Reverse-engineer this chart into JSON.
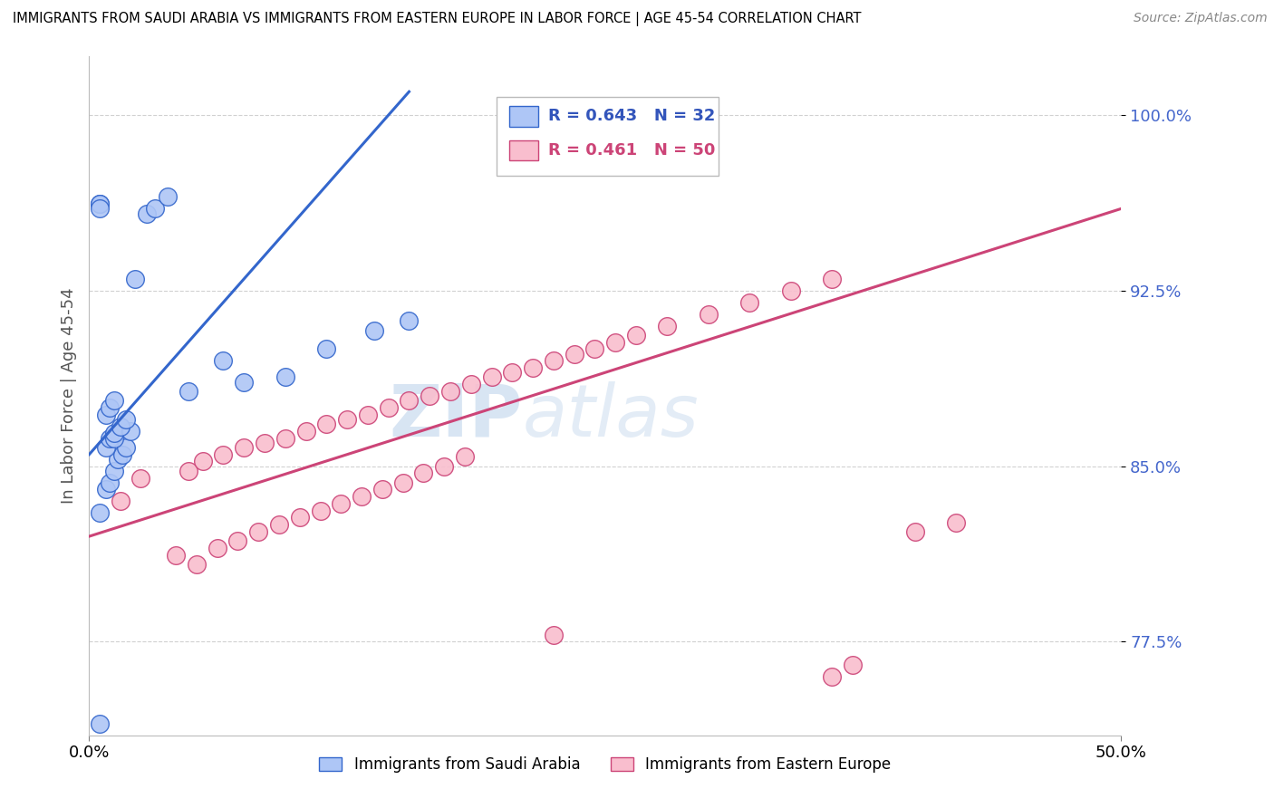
{
  "title": "IMMIGRANTS FROM SAUDI ARABIA VS IMMIGRANTS FROM EASTERN EUROPE IN LABOR FORCE | AGE 45-54 CORRELATION CHART",
  "source": "Source: ZipAtlas.com",
  "ylabel": "In Labor Force | Age 45-54",
  "legend_blue_R": "R = 0.643",
  "legend_blue_N": "N = 32",
  "legend_pink_R": "R = 0.461",
  "legend_pink_N": "N = 50",
  "legend_label_blue": "Immigrants from Saudi Arabia",
  "legend_label_pink": "Immigrants from Eastern Europe",
  "blue_color": "#AEC6F6",
  "pink_color": "#F9BECE",
  "blue_color_line": "#3366CC",
  "pink_color_line": "#CC4477",
  "blue_color_text": "#3355BB",
  "pink_color_text": "#CC4477",
  "yaxis_color": "#4466CC",
  "watermark_color": "#C8DAEE",
  "xlim": [
    0.0,
    0.5
  ],
  "ylim": [
    0.735,
    1.025
  ],
  "ytick_vals": [
    0.775,
    0.85,
    0.925,
    1.0
  ],
  "ytick_labels": [
    "77.5%",
    "85.0%",
    "92.5%",
    "100.0%"
  ],
  "xtick_vals": [
    0.0,
    0.5
  ],
  "xtick_labels": [
    "0.0%",
    "50.0%"
  ],
  "blue_scatter_x": [
    0.005,
    0.022,
    0.028,
    0.032,
    0.038,
    0.005,
    0.008,
    0.01,
    0.012,
    0.014,
    0.016,
    0.018,
    0.008,
    0.01,
    0.012,
    0.012,
    0.02,
    0.015,
    0.018,
    0.008,
    0.01,
    0.012,
    0.048,
    0.075,
    0.095,
    0.065,
    0.115,
    0.138,
    0.155,
    0.005,
    0.005,
    0.005
  ],
  "blue_scatter_y": [
    0.74,
    0.93,
    0.958,
    0.96,
    0.965,
    0.83,
    0.84,
    0.843,
    0.848,
    0.853,
    0.855,
    0.858,
    0.858,
    0.862,
    0.862,
    0.864,
    0.865,
    0.867,
    0.87,
    0.872,
    0.875,
    0.878,
    0.882,
    0.886,
    0.888,
    0.895,
    0.9,
    0.908,
    0.912,
    0.962,
    0.962,
    0.96
  ],
  "pink_scatter_x": [
    0.015,
    0.025,
    0.048,
    0.055,
    0.065,
    0.075,
    0.085,
    0.095,
    0.105,
    0.115,
    0.125,
    0.135,
    0.145,
    0.155,
    0.165,
    0.175,
    0.185,
    0.195,
    0.205,
    0.215,
    0.225,
    0.235,
    0.245,
    0.255,
    0.265,
    0.28,
    0.3,
    0.32,
    0.34,
    0.36,
    0.042,
    0.052,
    0.062,
    0.072,
    0.082,
    0.092,
    0.102,
    0.112,
    0.122,
    0.132,
    0.142,
    0.152,
    0.162,
    0.172,
    0.182,
    0.4,
    0.42,
    0.36,
    0.37,
    0.225
  ],
  "pink_scatter_y": [
    0.835,
    0.845,
    0.848,
    0.852,
    0.855,
    0.858,
    0.86,
    0.862,
    0.865,
    0.868,
    0.87,
    0.872,
    0.875,
    0.878,
    0.88,
    0.882,
    0.885,
    0.888,
    0.89,
    0.892,
    0.895,
    0.898,
    0.9,
    0.903,
    0.906,
    0.91,
    0.915,
    0.92,
    0.925,
    0.93,
    0.812,
    0.808,
    0.815,
    0.818,
    0.822,
    0.825,
    0.828,
    0.831,
    0.834,
    0.837,
    0.84,
    0.843,
    0.847,
    0.85,
    0.854,
    0.822,
    0.826,
    0.76,
    0.765,
    0.778
  ],
  "blue_line_x": [
    0.0,
    0.155
  ],
  "blue_line_y": [
    0.855,
    1.01
  ],
  "pink_line_x": [
    0.0,
    0.5
  ],
  "pink_line_y": [
    0.82,
    0.96
  ]
}
